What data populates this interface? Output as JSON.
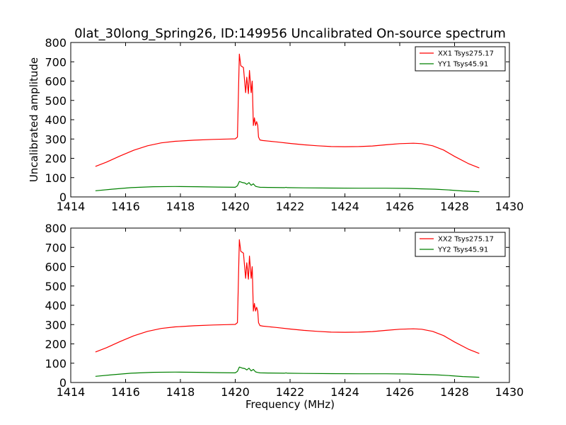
{
  "figure": {
    "title": "0lat_30long_Spring26, ID:149956 Uncalibrated On-source spectrum"
  },
  "chart_data": [
    {
      "type": "line",
      "title": "0lat_30long_Spring26, ID:149956 Uncalibrated On-source spectrum",
      "xlabel": "",
      "ylabel": "Uncalibrated amplitude",
      "xlim": [
        1414,
        1430
      ],
      "ylim": [
        0,
        800
      ],
      "xticks": [
        "1414",
        "1416",
        "1418",
        "1420",
        "1422",
        "1424",
        "1426",
        "1428",
        "1430"
      ],
      "yticks": [
        "0",
        "100",
        "200",
        "300",
        "400",
        "500",
        "600",
        "700",
        "800"
      ],
      "legend_position": "top-right",
      "series": [
        {
          "name": "XX1 Tsys275.17",
          "color": "#ff0000",
          "x": [
            1414.9,
            1415.3,
            1415.8,
            1416.3,
            1416.8,
            1417.3,
            1417.8,
            1418.5,
            1419.2,
            1419.7,
            1420.0,
            1420.08,
            1420.15,
            1420.2,
            1420.3,
            1420.38,
            1420.42,
            1420.48,
            1420.52,
            1420.58,
            1420.62,
            1420.66,
            1420.7,
            1420.74,
            1420.78,
            1420.82,
            1420.85,
            1420.9,
            1421.0,
            1421.5,
            1422.0,
            1422.5,
            1423.0,
            1423.5,
            1424.0,
            1424.5,
            1425.0,
            1425.5,
            1426.0,
            1426.5,
            1426.8,
            1427.2,
            1427.6,
            1428.0,
            1428.5,
            1428.9
          ],
          "y": [
            158,
            180,
            212,
            242,
            265,
            280,
            288,
            294,
            298,
            300,
            301,
            310,
            740,
            680,
            670,
            540,
            620,
            535,
            655,
            540,
            600,
            370,
            410,
            370,
            390,
            370,
            310,
            295,
            292,
            285,
            277,
            270,
            265,
            261,
            260,
            261,
            264,
            270,
            276,
            278,
            276,
            265,
            243,
            210,
            173,
            150
          ]
        },
        {
          "name": "YY1 Tsys45.91",
          "color": "#008000",
          "x": [
            1414.9,
            1415.5,
            1416.2,
            1417.0,
            1417.8,
            1418.6,
            1419.4,
            1420.0,
            1420.08,
            1420.15,
            1420.25,
            1420.35,
            1420.42,
            1420.5,
            1420.58,
            1420.66,
            1420.74,
            1420.82,
            1420.9,
            1421.2,
            1421.8,
            1421.85,
            1421.9,
            1422.5,
            1423.5,
            1424.5,
            1425.5,
            1426.3,
            1426.8,
            1427.3,
            1427.8,
            1428.3,
            1428.9
          ],
          "y": [
            32,
            40,
            48,
            53,
            54,
            53,
            51,
            50,
            58,
            80,
            75,
            72,
            65,
            74,
            60,
            68,
            55,
            52,
            50,
            49,
            48,
            50,
            48,
            47,
            46,
            45,
            45,
            44,
            42,
            40,
            36,
            31,
            27
          ]
        }
      ]
    },
    {
      "type": "line",
      "title": "",
      "xlabel": "Frequency (MHz)",
      "ylabel": "",
      "xlim": [
        1414,
        1430
      ],
      "ylim": [
        0,
        800
      ],
      "xticks": [
        "1414",
        "1416",
        "1418",
        "1420",
        "1422",
        "1424",
        "1426",
        "1428",
        "1430"
      ],
      "yticks": [
        "0",
        "100",
        "200",
        "300",
        "400",
        "500",
        "600",
        "700",
        "800"
      ],
      "legend_position": "top-right",
      "series": [
        {
          "name": "XX2 Tsys275.17",
          "color": "#ff0000",
          "x": [
            1414.9,
            1415.3,
            1415.8,
            1416.3,
            1416.8,
            1417.3,
            1417.8,
            1418.5,
            1419.2,
            1419.7,
            1420.0,
            1420.08,
            1420.15,
            1420.2,
            1420.3,
            1420.38,
            1420.42,
            1420.48,
            1420.52,
            1420.58,
            1420.62,
            1420.66,
            1420.7,
            1420.74,
            1420.78,
            1420.82,
            1420.85,
            1420.9,
            1421.0,
            1421.5,
            1422.0,
            1422.5,
            1423.0,
            1423.5,
            1424.0,
            1424.5,
            1425.0,
            1425.5,
            1426.0,
            1426.5,
            1426.8,
            1427.2,
            1427.6,
            1428.0,
            1428.5,
            1428.9
          ],
          "y": [
            158,
            180,
            212,
            242,
            265,
            280,
            288,
            294,
            298,
            300,
            301,
            310,
            740,
            680,
            670,
            540,
            620,
            535,
            655,
            540,
            600,
            370,
            410,
            370,
            390,
            370,
            310,
            295,
            292,
            285,
            277,
            270,
            265,
            261,
            260,
            261,
            264,
            270,
            276,
            278,
            276,
            265,
            243,
            210,
            173,
            150
          ]
        },
        {
          "name": "YY2 Tsys45.91",
          "color": "#008000",
          "x": [
            1414.9,
            1415.5,
            1416.2,
            1417.0,
            1417.8,
            1418.6,
            1419.4,
            1420.0,
            1420.08,
            1420.15,
            1420.25,
            1420.35,
            1420.42,
            1420.5,
            1420.58,
            1420.66,
            1420.74,
            1420.82,
            1420.9,
            1421.2,
            1421.8,
            1421.85,
            1421.9,
            1422.5,
            1423.5,
            1424.5,
            1425.5,
            1426.3,
            1426.8,
            1427.3,
            1427.8,
            1428.3,
            1428.9
          ],
          "y": [
            32,
            40,
            48,
            53,
            54,
            53,
            51,
            50,
            58,
            80,
            75,
            72,
            65,
            74,
            60,
            68,
            55,
            52,
            50,
            49,
            48,
            50,
            48,
            47,
            46,
            45,
            45,
            44,
            42,
            40,
            36,
            31,
            27
          ]
        }
      ]
    }
  ]
}
